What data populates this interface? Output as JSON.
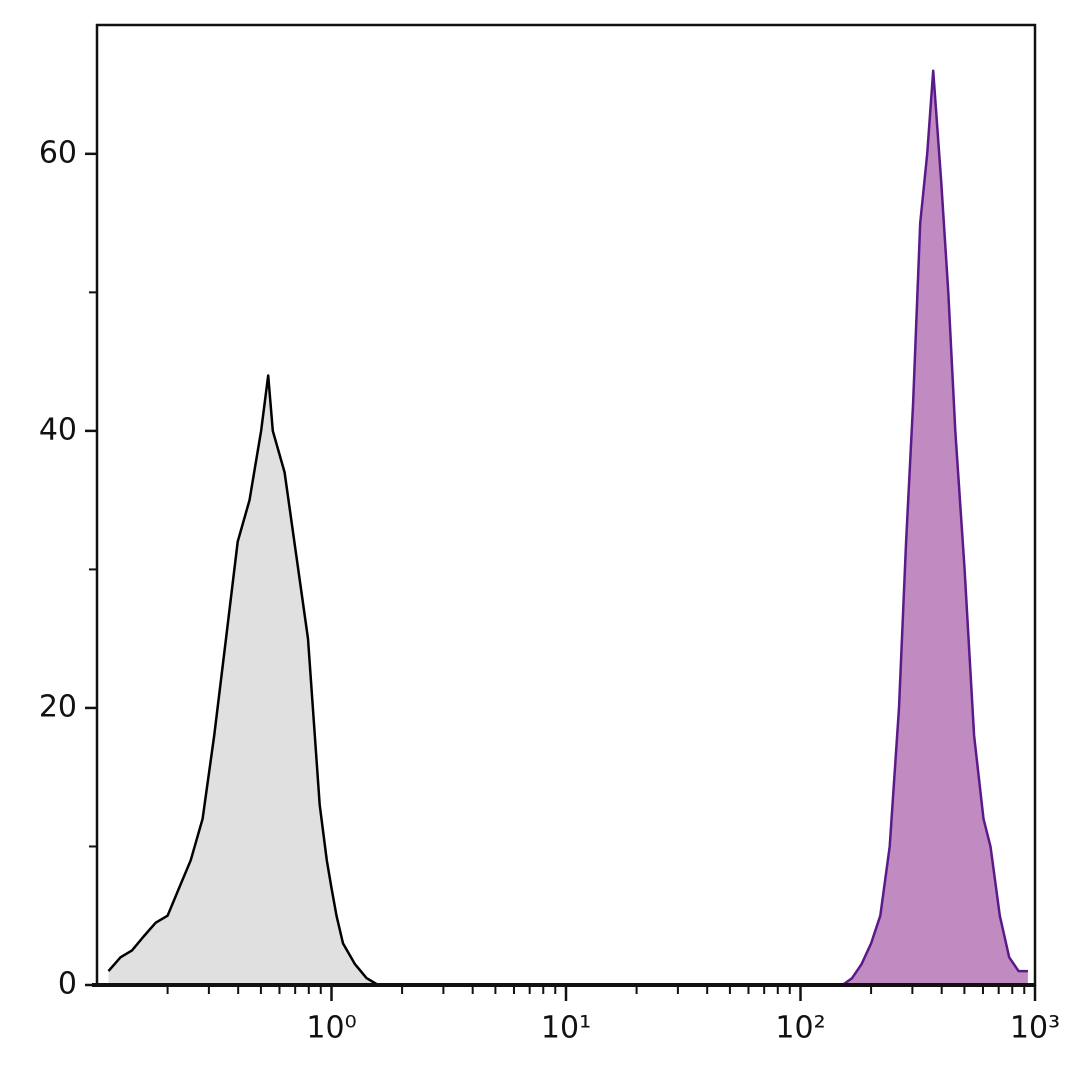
{
  "chart_data": {
    "type": "histogram-overlay",
    "xscale": "log",
    "xlim": [
      0.1,
      1000
    ],
    "ylim": [
      0,
      69.3
    ],
    "xticks": [
      {
        "value": 1,
        "label": "10⁰"
      },
      {
        "value": 10,
        "label": "10¹"
      },
      {
        "value": 100,
        "label": "10²"
      },
      {
        "value": 1000,
        "label": "10³"
      }
    ],
    "xminor": [
      0.2,
      0.3,
      0.4,
      0.5,
      0.6,
      0.7,
      0.8,
      0.9,
      2,
      3,
      4,
      5,
      6,
      7,
      8,
      9,
      20,
      30,
      40,
      50,
      60,
      70,
      80,
      90,
      200,
      300,
      400,
      500,
      600,
      700,
      800,
      900
    ],
    "yticks": [
      0,
      20,
      40,
      60
    ],
    "yminor": [
      10,
      30,
      50
    ],
    "series": [
      {
        "color": "#000000",
        "fill": "#e0e0e0",
        "x": [
          0.112,
          0.126,
          0.141,
          0.158,
          0.178,
          0.2,
          0.224,
          0.251,
          0.282,
          0.316,
          0.355,
          0.398,
          0.447,
          0.501,
          0.537,
          0.562,
          0.631,
          0.708,
          0.794,
          0.891,
          0.955,
          1.0,
          1.05,
          1.12,
          1.26,
          1.41,
          1.58
        ],
        "values": [
          1,
          2,
          2.5,
          3.5,
          4.5,
          5,
          7,
          9,
          12,
          18,
          25,
          32,
          35,
          40,
          44,
          40,
          37,
          31,
          25,
          13,
          9,
          7,
          5,
          3,
          1.5,
          0.5,
          0
        ]
      },
      {
        "color": "#5a1a8a",
        "fill": "#c08bc0",
        "x": [
          151,
          166,
          182,
          200,
          219,
          240,
          263,
          282,
          302,
          324,
          347,
          368,
          398,
          427,
          457,
          501,
          550,
          603,
          646,
          708,
          776,
          851,
          933
        ],
        "values": [
          0,
          0.5,
          1.5,
          3,
          5,
          10,
          20,
          32,
          42,
          55,
          60,
          66,
          58,
          50,
          40,
          30,
          18,
          12,
          10,
          5,
          2,
          1,
          1
        ]
      }
    ]
  }
}
